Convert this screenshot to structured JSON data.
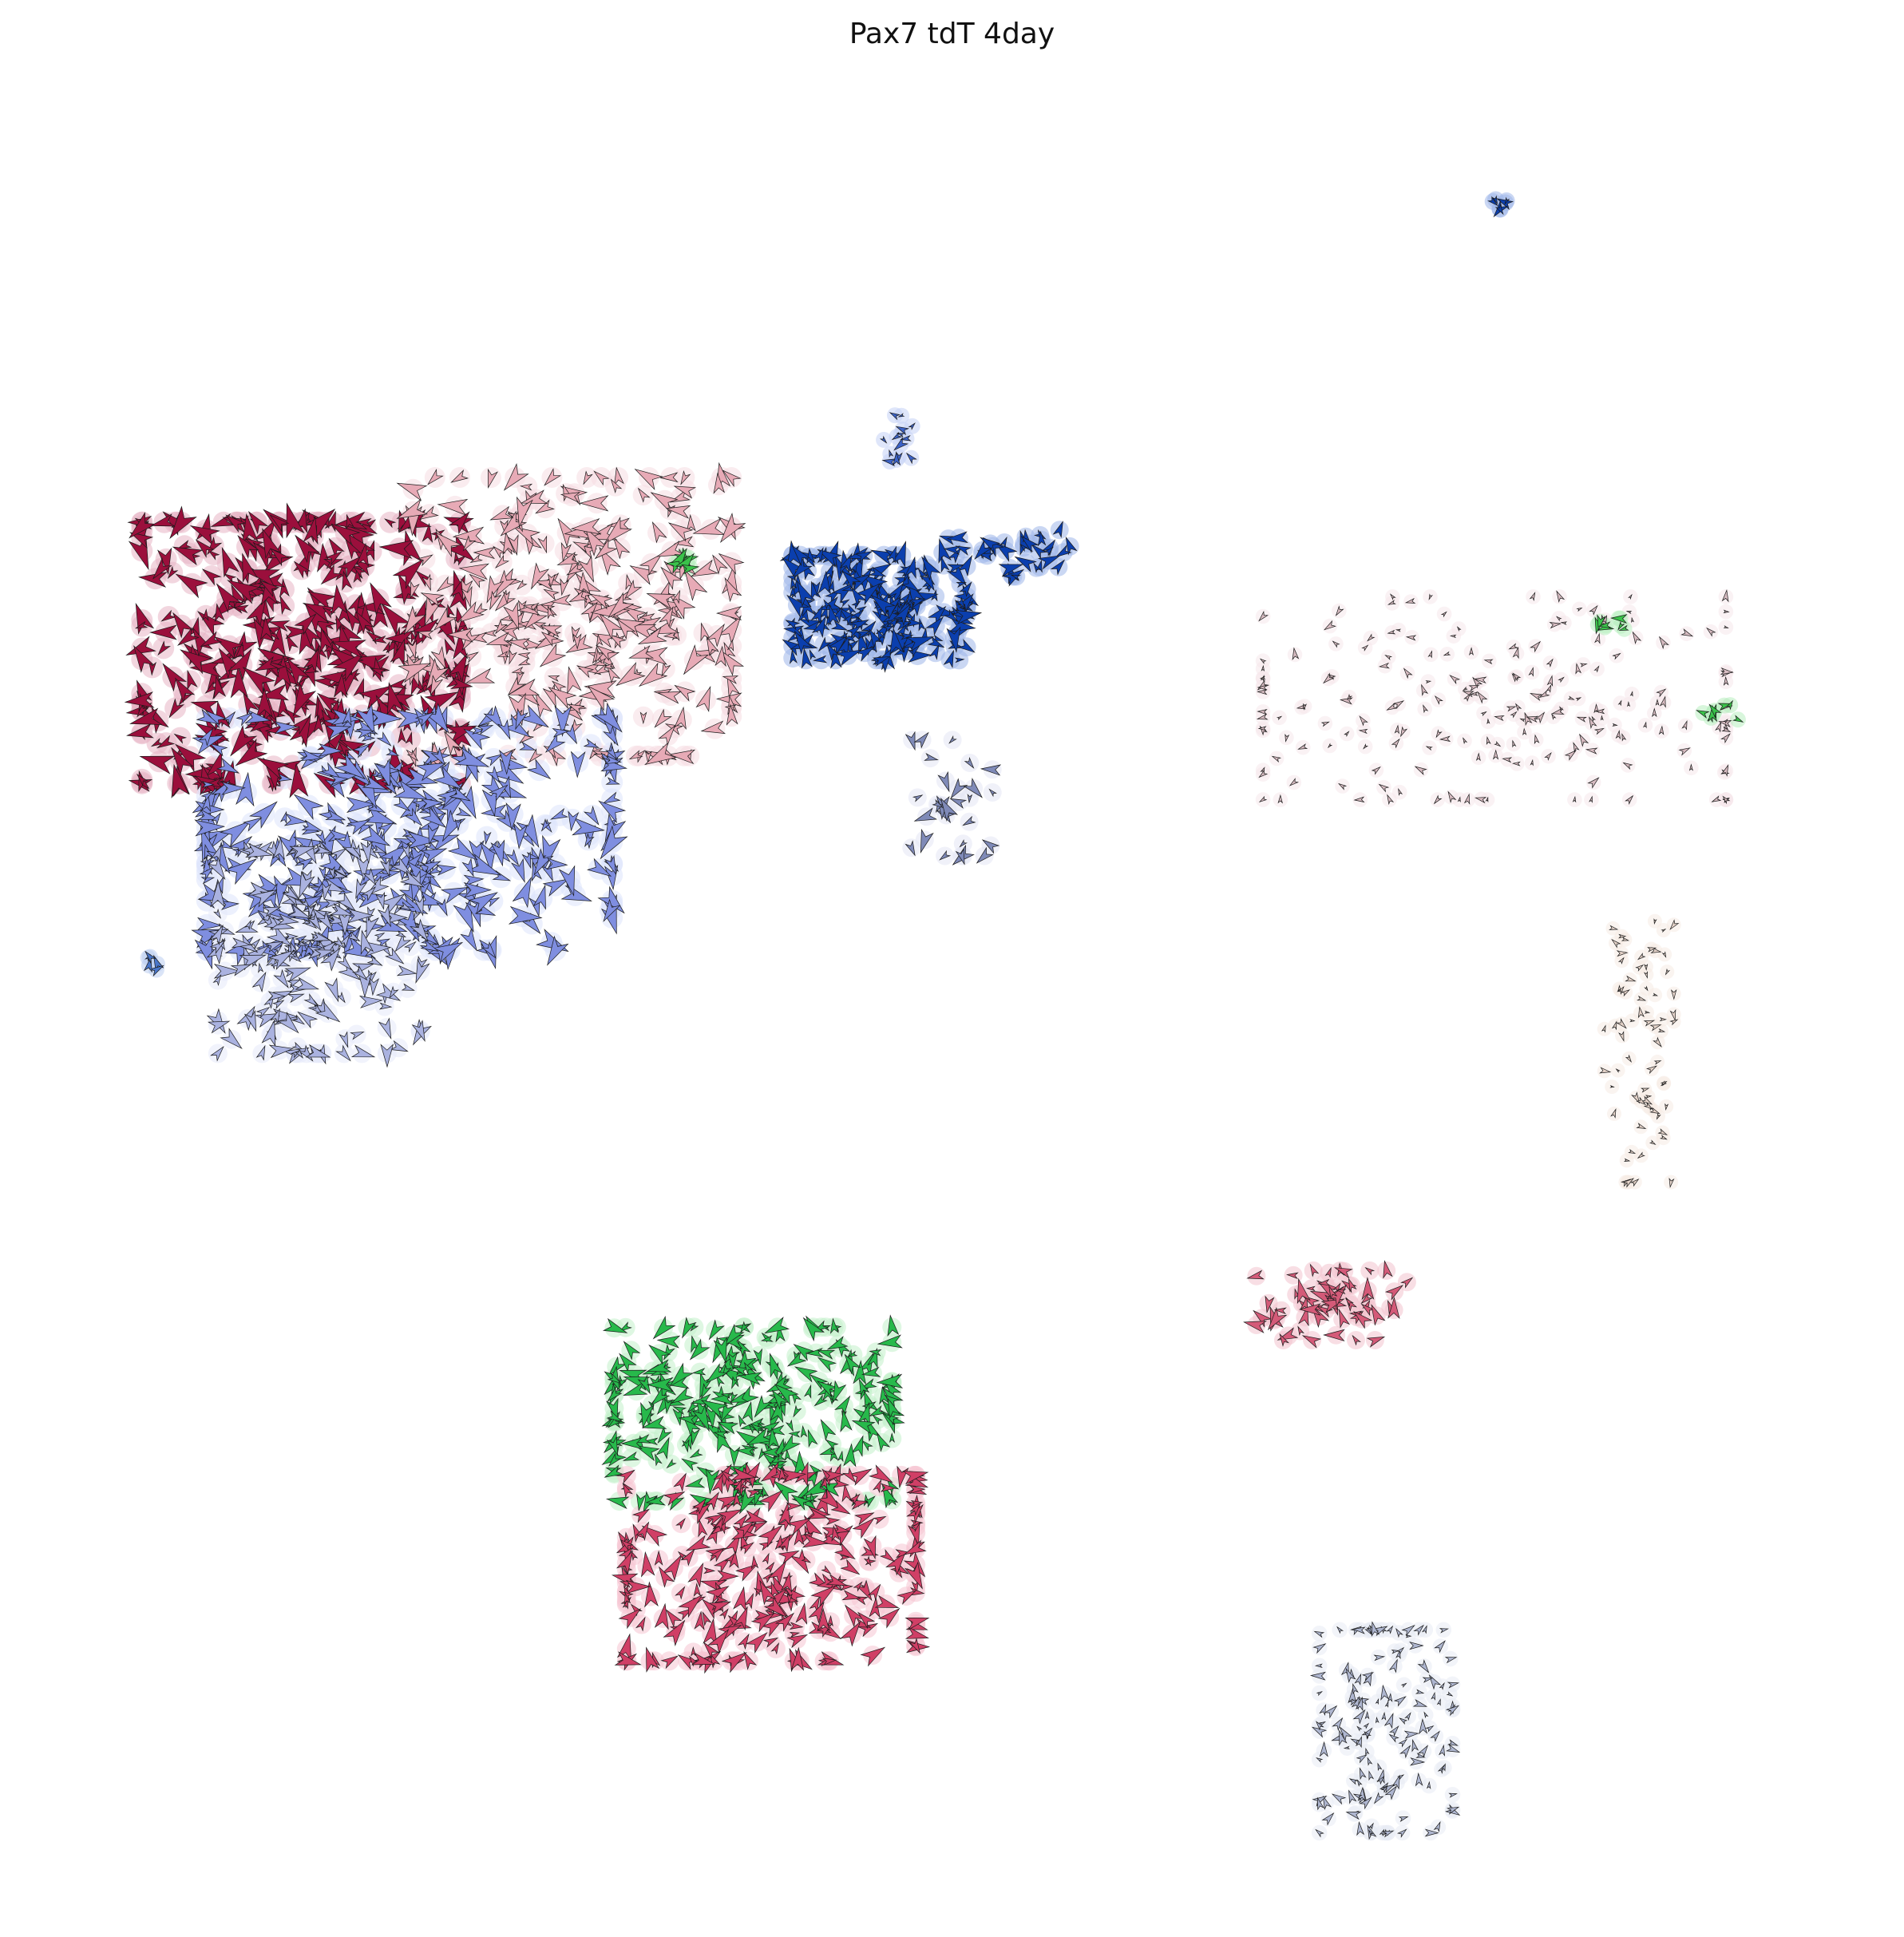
{
  "chart_data": {
    "type": "scatter",
    "title": "Pax7 tdT 4day",
    "xlabel": "",
    "ylabel": "",
    "axes_visible": false,
    "grid": false,
    "legend": "none",
    "marker": "velocity-arrow",
    "xlim": [
      0,
      100
    ],
    "ylim": [
      0,
      100
    ],
    "clusters": [
      {
        "color": "#9b0f3c",
        "halo": "#e8b4c4",
        "center": [
          14,
          67.5
        ],
        "spread": [
          5.5,
          4.5
        ],
        "count": 420,
        "arrow_size": 1.3
      },
      {
        "color": "#e7aab6",
        "halo": "#f6dce2",
        "center": [
          29,
          69.5
        ],
        "spread": [
          5.5,
          4.8
        ],
        "count": 300,
        "arrow_size": 1.2
      },
      {
        "color": "#7f8ee0",
        "halo": "#dde3fb",
        "center": [
          20,
          57.5
        ],
        "spread": [
          7,
          4
        ],
        "count": 380,
        "arrow_size": 1.3
      },
      {
        "color": "#aab2e0",
        "halo": "#e6e9fa",
        "center": [
          15,
          51
        ],
        "spread": [
          3.5,
          3.5
        ],
        "count": 220,
        "arrow_size": 1.0
      },
      {
        "color": "#0b3fae",
        "halo": "#9fb6ea",
        "center": [
          46,
          70
        ],
        "spread": [
          3,
          1.8
        ],
        "count": 220,
        "arrow_size": 1.0
      },
      {
        "color": "#0b3fae",
        "halo": "#9fb6ea",
        "center": [
          53,
          73
        ],
        "spread": [
          2.2,
          0.8
        ],
        "count": 35,
        "arrow_size": 0.9
      },
      {
        "color": "#3c63c9",
        "halo": "#c5d1f5",
        "center": [
          47,
          79.5
        ],
        "spread": [
          0.5,
          0.9
        ],
        "count": 14,
        "arrow_size": 0.6
      },
      {
        "color": "#0b3fae",
        "halo": "#9fb6ea",
        "center": [
          80.4,
          92.3
        ],
        "spread": [
          0.3,
          0.2
        ],
        "count": 6,
        "arrow_size": 0.7
      },
      {
        "color": "#7f8ab8",
        "halo": "#e3e6f4",
        "center": [
          50,
          59.5
        ],
        "spread": [
          1.4,
          2
        ],
        "count": 28,
        "arrow_size": 0.9
      },
      {
        "color": "#4a76c9",
        "halo": "#bccdf0",
        "center": [
          5.8,
          50.5
        ],
        "spread": [
          0.3,
          0.3
        ],
        "count": 5,
        "arrow_size": 0.6
      },
      {
        "color": "#3ac24a",
        "halo": "#b8eec0",
        "center": [
          35,
          72.5
        ],
        "spread": [
          0.5,
          0.3
        ],
        "count": 6,
        "arrow_size": 0.9
      },
      {
        "color": "#d8bcc2",
        "halo": "#f6e8eb",
        "center": [
          80,
          65
        ],
        "spread": [
          8,
          3.5
        ],
        "count": 200,
        "arrow_size": 0.45
      },
      {
        "color": "#3ac24a",
        "halo": "#b8eec0",
        "center": [
          86.8,
          69
        ],
        "spread": [
          0.7,
          0.25
        ],
        "count": 8,
        "arrow_size": 0.6
      },
      {
        "color": "#3ac24a",
        "halo": "#b8eec0",
        "center": [
          92.5,
          64.3
        ],
        "spread": [
          0.6,
          0.3
        ],
        "count": 8,
        "arrow_size": 0.6
      },
      {
        "color": "#e6d4ca",
        "halo": "#f6ebe4",
        "center": [
          88,
          45.5
        ],
        "spread": [
          1.2,
          4.5
        ],
        "count": 70,
        "arrow_size": 0.4
      },
      {
        "color": "#d45a78",
        "halo": "#f3c2ce",
        "center": [
          71,
          31.5
        ],
        "spread": [
          2.6,
          1.2
        ],
        "count": 60,
        "arrow_size": 0.9
      },
      {
        "color": "#27b94b",
        "halo": "#c2f0cb",
        "center": [
          39,
          25.5
        ],
        "spread": [
          4.8,
          3
        ],
        "count": 300,
        "arrow_size": 1.0
      },
      {
        "color": "#d03f66",
        "halo": "#f5c4d1",
        "center": [
          40,
          17
        ],
        "spread": [
          5,
          3.2
        ],
        "count": 300,
        "arrow_size": 1.0
      },
      {
        "color": "#aeb6d0",
        "halo": "#e8ebf4",
        "center": [
          74,
          8
        ],
        "spread": [
          2.3,
          3.5
        ],
        "count": 150,
        "arrow_size": 0.55
      }
    ]
  }
}
